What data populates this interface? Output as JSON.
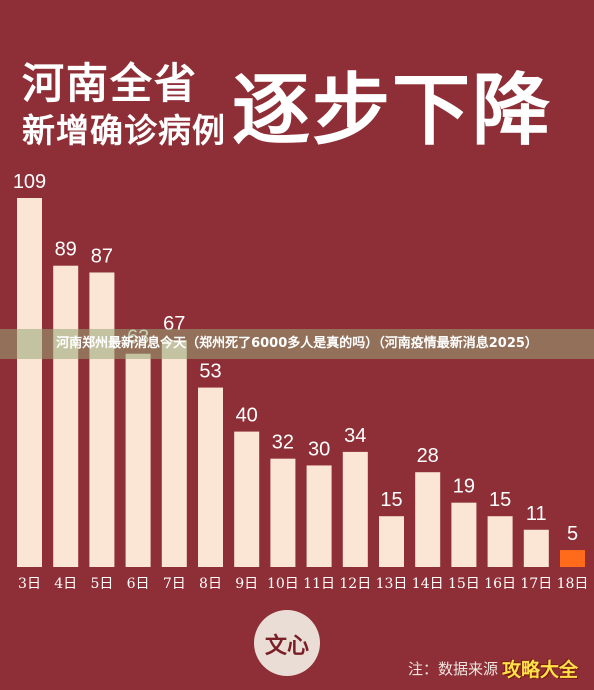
{
  "title": {
    "line1": "河南全省",
    "line2": "新增确诊病例",
    "emphasis": "逐步下降"
  },
  "overlay_banner": "河南郑州最新消息今天（郑州死了6000多人是真的吗）（河南疫情最新消息2025）",
  "logo_text": "文心",
  "footnote": "注：数据来源",
  "watermark": "攻略大全",
  "colors": {
    "background": "#8e2f37",
    "bar": "#fbe6d6",
    "highlight_bar": "#ff6b1a",
    "label": "#ffffff"
  },
  "chart_data": {
    "type": "bar",
    "categories": [
      "3日",
      "4日",
      "5日",
      "6日",
      "7日",
      "8日",
      "9日",
      "10日",
      "11日",
      "12日",
      "13日",
      "14日",
      "15日",
      "16日",
      "17日",
      "18日"
    ],
    "values": [
      109,
      89,
      87,
      63,
      67,
      53,
      40,
      32,
      30,
      34,
      15,
      28,
      19,
      15,
      11,
      5
    ],
    "highlight_index": 15,
    "ylim": [
      0,
      109
    ],
    "grid": false,
    "legend": "none"
  }
}
